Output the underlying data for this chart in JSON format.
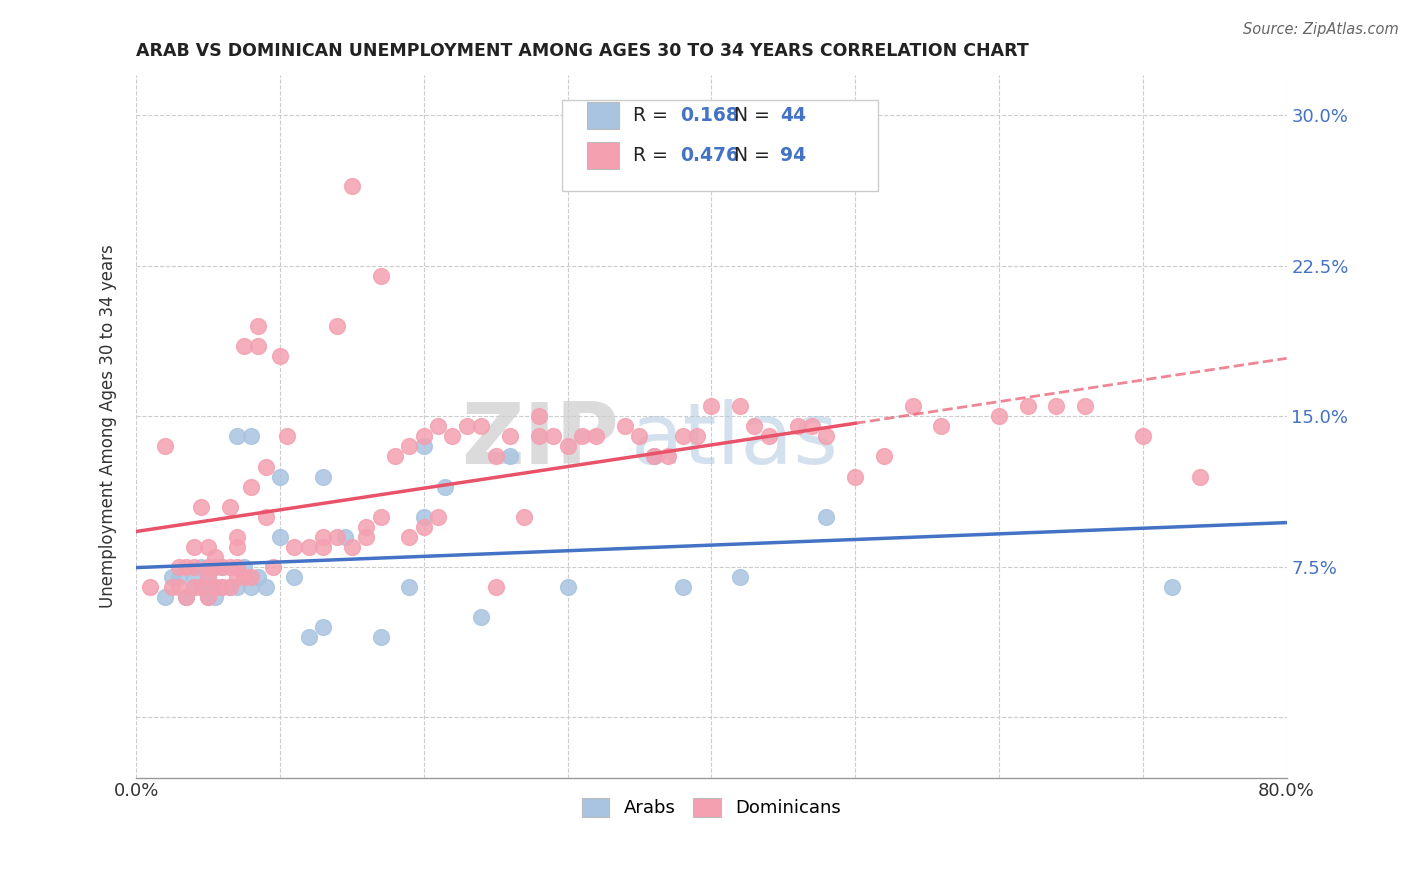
{
  "title": "ARAB VS DOMINICAN UNEMPLOYMENT AMONG AGES 30 TO 34 YEARS CORRELATION CHART",
  "source": "Source: ZipAtlas.com",
  "ylabel": "Unemployment Among Ages 30 to 34 years",
  "xlim": [
    0.0,
    0.8
  ],
  "ylim": [
    -0.03,
    0.32
  ],
  "yticks": [
    0.0,
    0.075,
    0.15,
    0.225,
    0.3
  ],
  "ytick_labels": [
    "",
    "7.5%",
    "15.0%",
    "22.5%",
    "30.0%"
  ],
  "xticks": [
    0.0,
    0.1,
    0.2,
    0.3,
    0.4,
    0.5,
    0.6,
    0.7,
    0.8
  ],
  "arab_color": "#a8c4e0",
  "dominican_color": "#f4a0b0",
  "arab_line_color": "#4472c4",
  "dominican_line_color": "#e8536a",
  "arab_R": 0.168,
  "arab_N": 44,
  "dominican_R": 0.476,
  "dominican_N": 94,
  "watermark_zip": "ZIP",
  "watermark_atlas": "atlas",
  "background_color": "#ffffff",
  "grid_color": "#cccccc",
  "arab_scatter_x": [
    0.02,
    0.025,
    0.03,
    0.035,
    0.04,
    0.04,
    0.045,
    0.045,
    0.05,
    0.05,
    0.05,
    0.055,
    0.055,
    0.055,
    0.06,
    0.06,
    0.065,
    0.07,
    0.07,
    0.075,
    0.08,
    0.08,
    0.085,
    0.09,
    0.1,
    0.1,
    0.11,
    0.12,
    0.13,
    0.13,
    0.145,
    0.17,
    0.19,
    0.2,
    0.2,
    0.215,
    0.24,
    0.26,
    0.3,
    0.36,
    0.38,
    0.42,
    0.48,
    0.72
  ],
  "arab_scatter_y": [
    0.06,
    0.07,
    0.07,
    0.06,
    0.065,
    0.07,
    0.065,
    0.075,
    0.06,
    0.065,
    0.07,
    0.06,
    0.065,
    0.075,
    0.065,
    0.075,
    0.065,
    0.065,
    0.14,
    0.075,
    0.065,
    0.14,
    0.07,
    0.065,
    0.09,
    0.12,
    0.07,
    0.04,
    0.045,
    0.12,
    0.09,
    0.04,
    0.065,
    0.1,
    0.135,
    0.115,
    0.05,
    0.13,
    0.065,
    0.13,
    0.065,
    0.07,
    0.1,
    0.065
  ],
  "dominican_scatter_x": [
    0.01,
    0.02,
    0.025,
    0.03,
    0.03,
    0.035,
    0.035,
    0.04,
    0.04,
    0.04,
    0.045,
    0.045,
    0.05,
    0.05,
    0.05,
    0.05,
    0.055,
    0.055,
    0.055,
    0.06,
    0.06,
    0.065,
    0.065,
    0.065,
    0.07,
    0.07,
    0.07,
    0.07,
    0.075,
    0.075,
    0.08,
    0.08,
    0.085,
    0.085,
    0.09,
    0.09,
    0.095,
    0.1,
    0.105,
    0.11,
    0.12,
    0.13,
    0.13,
    0.14,
    0.14,
    0.15,
    0.15,
    0.16,
    0.16,
    0.17,
    0.17,
    0.18,
    0.19,
    0.19,
    0.2,
    0.2,
    0.21,
    0.21,
    0.22,
    0.23,
    0.24,
    0.25,
    0.25,
    0.26,
    0.27,
    0.28,
    0.28,
    0.29,
    0.3,
    0.31,
    0.32,
    0.34,
    0.35,
    0.36,
    0.37,
    0.38,
    0.39,
    0.4,
    0.42,
    0.43,
    0.44,
    0.46,
    0.47,
    0.48,
    0.5,
    0.52,
    0.54,
    0.56,
    0.6,
    0.62,
    0.64,
    0.66,
    0.7,
    0.74
  ],
  "dominican_scatter_y": [
    0.065,
    0.135,
    0.065,
    0.065,
    0.075,
    0.06,
    0.075,
    0.065,
    0.075,
    0.085,
    0.065,
    0.105,
    0.06,
    0.07,
    0.075,
    0.085,
    0.065,
    0.075,
    0.08,
    0.065,
    0.075,
    0.065,
    0.075,
    0.105,
    0.07,
    0.075,
    0.085,
    0.09,
    0.07,
    0.185,
    0.07,
    0.115,
    0.185,
    0.195,
    0.1,
    0.125,
    0.075,
    0.18,
    0.14,
    0.085,
    0.085,
    0.085,
    0.09,
    0.09,
    0.195,
    0.085,
    0.265,
    0.09,
    0.095,
    0.1,
    0.22,
    0.13,
    0.09,
    0.135,
    0.095,
    0.14,
    0.1,
    0.145,
    0.14,
    0.145,
    0.145,
    0.065,
    0.13,
    0.14,
    0.1,
    0.14,
    0.15,
    0.14,
    0.135,
    0.14,
    0.14,
    0.145,
    0.14,
    0.13,
    0.13,
    0.14,
    0.14,
    0.155,
    0.155,
    0.145,
    0.14,
    0.145,
    0.145,
    0.14,
    0.12,
    0.13,
    0.155,
    0.145,
    0.15,
    0.155,
    0.155,
    0.155,
    0.14,
    0.12
  ]
}
